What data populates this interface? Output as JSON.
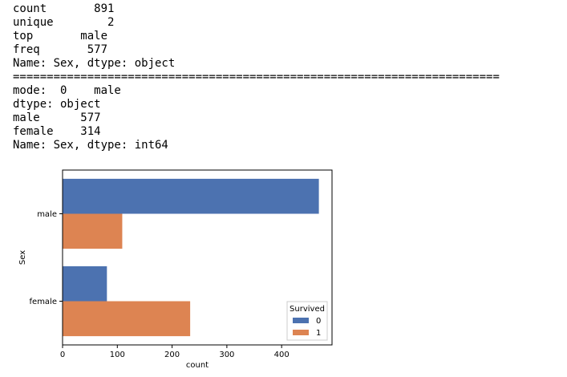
{
  "console_lines": [
    "count       891",
    "unique        2",
    "top       male",
    "freq       577",
    "Name: Sex, dtype: object",
    "========================================================================",
    "mode:  0    male",
    "dtype: object",
    "male      577",
    "female    314",
    "Name: Sex, dtype: int64"
  ],
  "chart_data": {
    "type": "bar",
    "orientation": "horizontal",
    "categories": [
      "male",
      "female"
    ],
    "series": [
      {
        "name": "0",
        "values": [
          468,
          81
        ],
        "color": "#4c72b0"
      },
      {
        "name": "1",
        "values": [
          109,
          233
        ],
        "color": "#dd8452"
      }
    ],
    "xlabel": "count",
    "ylabel": "Sex",
    "xlim": [
      0,
      492
    ],
    "xticks": [
      0,
      100,
      200,
      300,
      400
    ],
    "grid": false,
    "legend": {
      "title": "Survived",
      "placement": "lower-right"
    }
  }
}
